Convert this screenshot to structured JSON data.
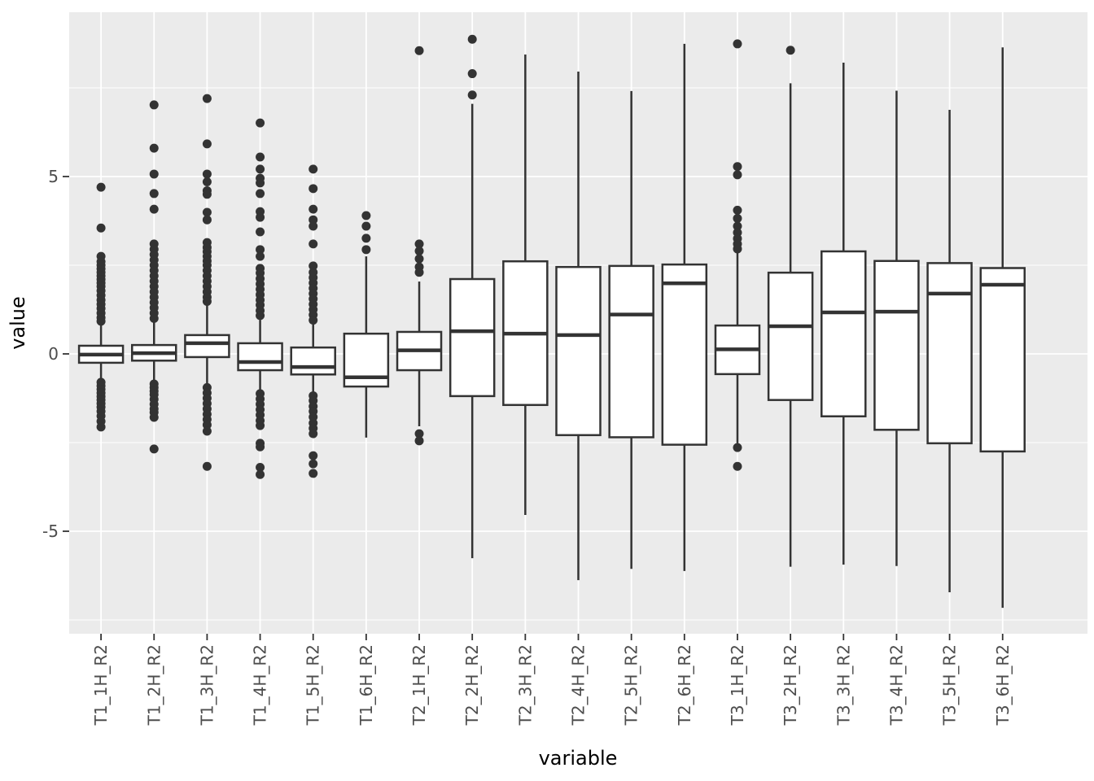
{
  "page": {
    "background": "#FFFFFF"
  },
  "chart_data": {
    "type": "boxplot",
    "title": "",
    "xlabel": "variable",
    "ylabel": "value",
    "ylim": [
      -7.9,
      9.65
    ],
    "yticks": [
      -5,
      0,
      5
    ],
    "ytick_labels": [
      "-5",
      "0",
      "5"
    ],
    "minor_gridlines": [
      -7.5,
      -2.5,
      2.5,
      7.5
    ],
    "grid": "on",
    "legend": "none",
    "panel_background": "#EBEBEB",
    "gridline_color": "#FFFFFF",
    "box_fill": "#FFFFFF",
    "stroke_color": "#333333",
    "tick_label_color": "#4D4D4D",
    "axis_title_color": "#000000",
    "categories": [
      "T1_1H_R2",
      "T1_2H_R2",
      "T1_3H_R2",
      "T1_4H_R2",
      "T1_5H_R2",
      "T1_6H_R2",
      "T2_1H_R2",
      "T2_2H_R2",
      "T2_3H_R2",
      "T2_4H_R2",
      "T2_5H_R2",
      "T2_6H_R2",
      "T3_1H_R2",
      "T3_2H_R2",
      "T3_3H_R2",
      "T3_4H_R2",
      "T3_5H_R2",
      "T3_6H_R2"
    ],
    "series": [
      {
        "label": "T1_1H_R2",
        "whisker_low": -0.72,
        "q1": -0.25,
        "median": -0.02,
        "q3": 0.23,
        "whisker_high": 0.85,
        "outliers_high": [
          4.7,
          3.55,
          2.75,
          2.6,
          2.5,
          2.4,
          2.3,
          2.2,
          2.1,
          2.0,
          1.9,
          1.78,
          1.65,
          1.52,
          1.4,
          1.28,
          1.15,
          1.02,
          0.92
        ],
        "outliers_low": [
          -0.8,
          -0.9,
          -1.0,
          -1.1,
          -1.2,
          -1.3,
          -1.4,
          -1.5,
          -1.62,
          -1.75,
          -1.9,
          -2.06
        ]
      },
      {
        "label": "T1_2H_R2",
        "whisker_low": -0.75,
        "q1": -0.19,
        "median": 0.02,
        "q3": 0.25,
        "whisker_high": 0.9,
        "outliers_high": [
          7.02,
          5.8,
          5.07,
          4.52,
          4.08,
          3.1,
          2.95,
          2.8,
          2.65,
          2.5,
          2.35,
          2.2,
          2.05,
          1.9,
          1.75,
          1.6,
          1.45,
          1.3,
          1.15,
          1.0
        ],
        "outliers_low": [
          -0.85,
          -0.95,
          -1.05,
          -1.15,
          -1.28,
          -1.42,
          -1.55,
          -1.65,
          -1.79,
          -2.68
        ]
      },
      {
        "label": "T1_3H_R2",
        "whisker_low": -0.83,
        "q1": -0.09,
        "median": 0.3,
        "q3": 0.53,
        "whisker_high": 1.38,
        "outliers_high": [
          7.2,
          5.92,
          5.07,
          4.85,
          4.6,
          4.5,
          3.99,
          3.78,
          3.14,
          3.0,
          2.88,
          2.75,
          2.62,
          2.5,
          2.35,
          2.2,
          2.05,
          1.9,
          1.75,
          1.6,
          1.48
        ],
        "outliers_low": [
          -0.95,
          -1.1,
          -1.25,
          -1.4,
          -1.55,
          -1.7,
          -1.85,
          -2.0,
          -2.18,
          -3.17
        ]
      },
      {
        "label": "T1_4H_R2",
        "whisker_low": -1.03,
        "q1": -0.46,
        "median": -0.23,
        "q3": 0.3,
        "whisker_high": 0.96,
        "outliers_high": [
          6.51,
          5.55,
          5.21,
          4.95,
          4.82,
          4.52,
          4.01,
          3.85,
          3.44,
          2.94,
          2.75,
          2.41,
          2.28,
          2.12,
          1.97,
          1.82,
          1.67,
          1.52,
          1.38,
          1.22,
          1.08
        ],
        "outliers_low": [
          -1.12,
          -1.27,
          -1.42,
          -1.57,
          -1.72,
          -1.88,
          -2.02,
          -2.52,
          -2.62,
          -3.2,
          -3.4
        ]
      },
      {
        "label": "T1_5H_R2",
        "whisker_low": -1.1,
        "q1": -0.58,
        "median": -0.37,
        "q3": 0.18,
        "whisker_high": 0.85,
        "outliers_high": [
          5.21,
          4.66,
          4.08,
          3.78,
          3.6,
          3.1,
          2.48,
          2.3,
          2.15,
          2.0,
          1.85,
          1.7,
          1.55,
          1.4,
          1.25,
          1.1,
          0.95
        ],
        "outliers_low": [
          -1.18,
          -1.32,
          -1.48,
          -1.62,
          -1.78,
          -1.95,
          -2.1,
          -2.25,
          -2.87,
          -3.1,
          -3.37
        ]
      },
      {
        "label": "T1_6H_R2",
        "whisker_low": -2.36,
        "q1": -0.92,
        "median": -0.66,
        "q3": 0.57,
        "whisker_high": 2.75,
        "outliers_high": [
          3.9,
          3.6,
          3.26,
          2.94
        ],
        "outliers_low": []
      },
      {
        "label": "T2_1H_R2",
        "whisker_low": -2.04,
        "q1": -0.46,
        "median": 0.1,
        "q3": 0.62,
        "whisker_high": 2.04,
        "outliers_high": [
          8.55,
          3.1,
          2.9,
          2.68,
          2.45,
          2.3
        ],
        "outliers_low": [
          -2.25,
          -2.45
        ]
      },
      {
        "label": "T2_2H_R2",
        "whisker_low": -5.76,
        "q1": -1.19,
        "median": 0.64,
        "q3": 2.11,
        "whisker_high": 7.05,
        "outliers_high": [
          8.87,
          7.9,
          7.3
        ],
        "outliers_low": []
      },
      {
        "label": "T2_3H_R2",
        "whisker_low": -4.54,
        "q1": -1.44,
        "median": 0.57,
        "q3": 2.61,
        "whisker_high": 8.44,
        "outliers_high": [],
        "outliers_low": []
      },
      {
        "label": "T2_4H_R2",
        "whisker_low": -6.38,
        "q1": -2.29,
        "median": 0.53,
        "q3": 2.45,
        "whisker_high": 7.96,
        "outliers_high": [],
        "outliers_low": []
      },
      {
        "label": "T2_5H_R2",
        "whisker_low": -6.06,
        "q1": -2.35,
        "median": 1.11,
        "q3": 2.48,
        "whisker_high": 7.41,
        "outliers_high": [],
        "outliers_low": []
      },
      {
        "label": "T2_6H_R2",
        "whisker_low": -6.12,
        "q1": -2.56,
        "median": 1.99,
        "q3": 2.52,
        "whisker_high": 8.74,
        "outliers_high": [],
        "outliers_low": []
      },
      {
        "label": "T3_1H_R2",
        "whisker_low": -2.52,
        "q1": -0.57,
        "median": 0.13,
        "q3": 0.8,
        "whisker_high": 2.87,
        "outliers_high": [
          8.74,
          5.28,
          5.05,
          4.05,
          3.82,
          3.6,
          3.42,
          3.25,
          3.1,
          2.96
        ],
        "outliers_low": [
          -2.64,
          -3.17
        ]
      },
      {
        "label": "T3_2H_R2",
        "whisker_low": -6.0,
        "q1": -1.3,
        "median": 0.78,
        "q3": 2.29,
        "whisker_high": 7.63,
        "outliers_high": [
          8.56
        ],
        "outliers_low": []
      },
      {
        "label": "T3_3H_R2",
        "whisker_low": -5.94,
        "q1": -1.76,
        "median": 1.17,
        "q3": 2.89,
        "whisker_high": 8.21,
        "outliers_high": [],
        "outliers_low": []
      },
      {
        "label": "T3_4H_R2",
        "whisker_low": -5.98,
        "q1": -2.14,
        "median": 1.19,
        "q3": 2.62,
        "whisker_high": 7.42,
        "outliers_high": [],
        "outliers_low": []
      },
      {
        "label": "T3_5H_R2",
        "whisker_low": -6.72,
        "q1": -2.52,
        "median": 1.7,
        "q3": 2.56,
        "whisker_high": 6.88,
        "outliers_high": [],
        "outliers_low": []
      },
      {
        "label": "T3_6H_R2",
        "whisker_low": -7.16,
        "q1": -2.75,
        "median": 1.95,
        "q3": 2.42,
        "whisker_high": 8.64,
        "outliers_high": [],
        "outliers_low": []
      }
    ]
  }
}
